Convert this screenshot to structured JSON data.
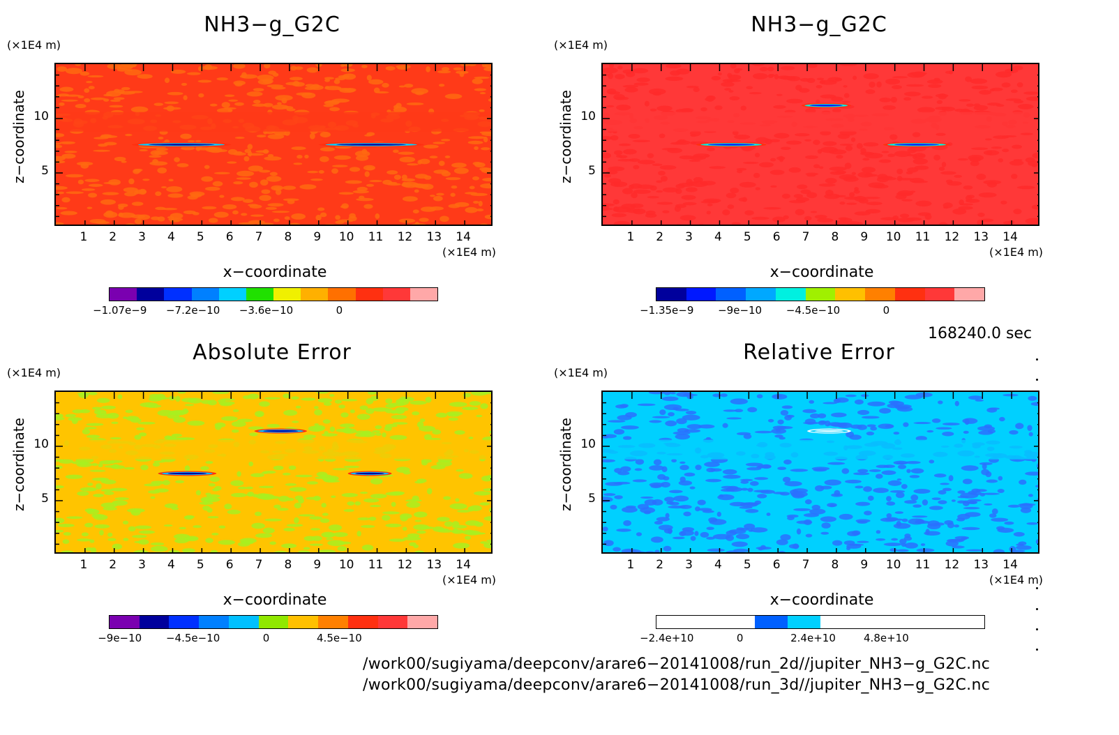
{
  "panels": [
    {
      "title": "NH3−g_G2C",
      "y_unit": "(×1E4 m)",
      "x_unit": "(×1E4 m)",
      "xlabel": "x−coordinate",
      "ylabel": "z−coordinate",
      "x_ticks": [
        "1",
        "2",
        "3",
        "4",
        "5",
        "6",
        "7",
        "8",
        "9",
        "10",
        "11",
        "12",
        "13",
        "14"
      ],
      "y_ticks": [
        "5",
        "10"
      ],
      "colorbar": {
        "colors": [
          "#7a00b0",
          "#00009c",
          "#0030ff",
          "#0080ff",
          "#00d0ff",
          "#20e000",
          "#f0f000",
          "#ffb000",
          "#ff7000",
          "#ff3010",
          "#ff3838",
          "#ffa8a8"
        ],
        "labels": [
          "−1.07e−9",
          "−7.2e−10",
          "−3.6e−10",
          "0"
        ]
      },
      "background": "#ff3a18",
      "speckle": "#ff6a10"
    },
    {
      "title": "NH3−g_G2C",
      "y_unit": "(×1E4 m)",
      "x_unit": "(×1E4 m)",
      "xlabel": "x−coordinate",
      "ylabel": "z−coordinate",
      "x_ticks": [
        "1",
        "2",
        "3",
        "4",
        "5",
        "6",
        "7",
        "8",
        "9",
        "10",
        "11",
        "12",
        "13",
        "14"
      ],
      "y_ticks": [
        "5",
        "10"
      ],
      "colorbar": {
        "colors": [
          "#00009c",
          "#0018ff",
          "#0060ff",
          "#00a8ff",
          "#00f0e0",
          "#a0f000",
          "#ffc000",
          "#ff8000",
          "#ff3010",
          "#ff3838",
          "#ffa8a8"
        ],
        "labels": [
          "−1.35e−9",
          "−9e−10",
          "−4.5e−10",
          "0"
        ]
      },
      "background": "#ff3838",
      "speckle": "#ff2a2a"
    },
    {
      "title": "Absolute Error",
      "y_unit": "(×1E4 m)",
      "x_unit": "(×1E4 m)",
      "xlabel": "x−coordinate",
      "ylabel": "z−coordinate",
      "x_ticks": [
        "1",
        "2",
        "3",
        "4",
        "5",
        "6",
        "7",
        "8",
        "9",
        "10",
        "11",
        "12",
        "13",
        "14"
      ],
      "y_ticks": [
        "5",
        "10"
      ],
      "colorbar": {
        "colors": [
          "#7a00b0",
          "#00009c",
          "#0030ff",
          "#0080ff",
          "#00c0ff",
          "#90e800",
          "#ffc000",
          "#ff8000",
          "#ff3010",
          "#ff3838",
          "#ffa8a8"
        ],
        "labels": [
          "−9e−10",
          "−4.5e−10",
          "0",
          "4.5e−10"
        ]
      },
      "background": "#ffc400",
      "speckle": "#a8f020"
    },
    {
      "title": "Relative Error",
      "y_unit": "(×1E4 m)",
      "x_unit": "(×1E4 m)",
      "xlabel": "x−coordinate",
      "ylabel": "z−coordinate",
      "x_ticks": [
        "1",
        "2",
        "3",
        "4",
        "5",
        "6",
        "7",
        "8",
        "9",
        "10",
        "11",
        "12",
        "13",
        "14"
      ],
      "y_ticks": [
        "5",
        "10"
      ],
      "colorbar": {
        "colors": [
          "#ffffff",
          "#ffffff",
          "#ffffff",
          "#0060ff",
          "#00d0ff",
          "#ffffff",
          "#ffffff",
          "#ffffff",
          "#ffffff",
          "#ffffff"
        ],
        "labels": [
          "−2.4e+10",
          "0",
          "2.4e+10",
          "4.8e+10"
        ]
      },
      "background": "#00d0ff",
      "speckle": "#2a70ff"
    }
  ],
  "timestamp": "168240.0 sec",
  "paths": [
    "/work00/sugiyama/deepconv/arare6−20141008/run_2d//jupiter_NH3−g_G2C.nc",
    "/work00/sugiyama/deepconv/arare6−20141008/run_3d//jupiter_NH3−g_G2C.nc"
  ],
  "chart_data": [
    {
      "type": "heatmap",
      "title": "NH3−g_G2C",
      "xlabel": "x−coordinate",
      "ylabel": "z−coordinate",
      "xlim": [
        0,
        15
      ],
      "ylim": [
        0,
        15
      ],
      "x_unit": "×1E4 m",
      "y_unit": "×1E4 m",
      "colorbar_ticks": [
        -1.07e-09,
        -7.2e-10,
        -3.6e-10,
        0
      ],
      "features": [
        {
          "x_range": [
            2.6,
            6.0
          ],
          "z": 7.6
        },
        {
          "x_range": [
            9.0,
            12.6
          ],
          "z": 7.6
        }
      ]
    },
    {
      "type": "heatmap",
      "title": "NH3−g_G2C",
      "xlabel": "x−coordinate",
      "ylabel": "z−coordinate",
      "xlim": [
        0,
        15
      ],
      "ylim": [
        0,
        15
      ],
      "x_unit": "×1E4 m",
      "y_unit": "×1E4 m",
      "colorbar_ticks": [
        -1.35e-09,
        -9e-10,
        -4.5e-10,
        0
      ],
      "features": [
        {
          "x_range": [
            3.2,
            5.6
          ],
          "z": 7.6
        },
        {
          "x_range": [
            9.6,
            11.9
          ],
          "z": 7.6
        },
        {
          "x_range": [
            6.8,
            8.5
          ],
          "z": 11.2
        }
      ]
    },
    {
      "type": "heatmap",
      "title": "Absolute Error",
      "xlabel": "x−coordinate",
      "ylabel": "z−coordinate",
      "xlim": [
        0,
        15
      ],
      "ylim": [
        0,
        15
      ],
      "x_unit": "×1E4 m",
      "y_unit": "×1E4 m",
      "colorbar_ticks": [
        -9e-10,
        -4.5e-10,
        0,
        4.5e-10
      ],
      "features": [
        {
          "x_range": [
            3.5,
            5.5
          ],
          "z": 7.5
        },
        {
          "x_range": [
            10.0,
            11.5
          ],
          "z": 7.5
        },
        {
          "x_range": [
            6.8,
            8.6
          ],
          "z": 11.4
        }
      ]
    },
    {
      "type": "heatmap",
      "title": "Relative Error",
      "xlabel": "x−coordinate",
      "ylabel": "z−coordinate",
      "xlim": [
        0,
        15
      ],
      "ylim": [
        0,
        15
      ],
      "x_unit": "×1E4 m",
      "y_unit": "×1E4 m",
      "colorbar_ticks": [
        -24000000000.0,
        0,
        24000000000.0,
        48000000000.0
      ],
      "features": [
        {
          "x_range": [
            7.0,
            8.5
          ],
          "z": 11.4
        }
      ]
    }
  ]
}
